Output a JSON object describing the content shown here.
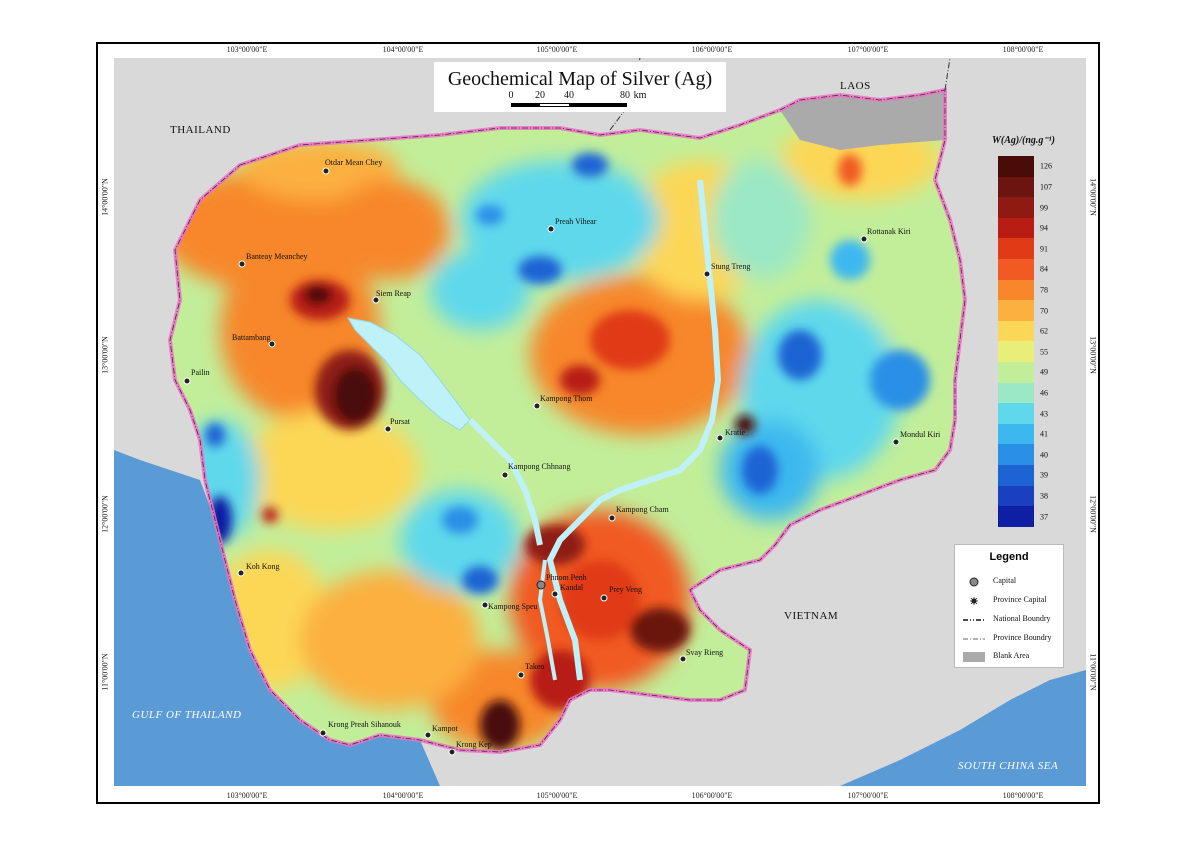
{
  "title": "Geochemical Map of  Silver (Ag)",
  "scale_bar": {
    "labels": [
      "0",
      "20",
      "40",
      "80"
    ],
    "unit": "km"
  },
  "axes": {
    "longitude_labels": [
      "103°00'00\"E",
      "104°00'00\"E",
      "105°00'00\"E",
      "106°00'00\"E",
      "107°00'00\"E",
      "108°00'00\"E"
    ],
    "latitude_labels": [
      "14°00'00\"N",
      "13°00'00\"N",
      "12°00'00\"N",
      "11°00'00\"N"
    ]
  },
  "countries": [
    "THAILAND",
    "LAOS",
    "VIETNAM"
  ],
  "seas": [
    "GULF OF THAILAND",
    "SOUTH CHINA SEA"
  ],
  "places": [
    {
      "name": "Otdar Mean Chey",
      "type": "province"
    },
    {
      "name": "Preah Vihear",
      "type": "province"
    },
    {
      "name": "Rottanak Kiri",
      "type": "province"
    },
    {
      "name": "Banteay Meanchey",
      "type": "province"
    },
    {
      "name": "Stung Treng",
      "type": "province"
    },
    {
      "name": "Siem Reap",
      "type": "province"
    },
    {
      "name": "Battambang",
      "type": "province"
    },
    {
      "name": "Pailin",
      "type": "province"
    },
    {
      "name": "Kampong Thom",
      "type": "province"
    },
    {
      "name": "Pursat",
      "type": "province"
    },
    {
      "name": "Kratie",
      "type": "province"
    },
    {
      "name": "Mondul Kiri",
      "type": "province"
    },
    {
      "name": "Kampong Chhnang",
      "type": "province"
    },
    {
      "name": "Kampong Cham",
      "type": "province"
    },
    {
      "name": "Koh Kong",
      "type": "province"
    },
    {
      "name": "Phnom Penh",
      "type": "capital"
    },
    {
      "name": "Kandal",
      "type": "province"
    },
    {
      "name": "Prey Veng",
      "type": "province"
    },
    {
      "name": "Kampong Speu",
      "type": "province"
    },
    {
      "name": "Svay Rieng",
      "type": "province"
    },
    {
      "name": "Takeo",
      "type": "province"
    },
    {
      "name": "Krong Preah Sihanouk",
      "type": "province"
    },
    {
      "name": "Kampot",
      "type": "province"
    },
    {
      "name": "Krong Kep",
      "type": "province"
    }
  ],
  "colorbar": {
    "title": "W(Ag)/(ng.g⁻¹)",
    "levels": [
      {
        "label": "126",
        "color": "#4a0c08"
      },
      {
        "label": "107",
        "color": "#6b1410"
      },
      {
        "label": "99",
        "color": "#8f1a12"
      },
      {
        "label": "94",
        "color": "#b81d14"
      },
      {
        "label": "91",
        "color": "#e03a17"
      },
      {
        "label": "84",
        "color": "#f15a22"
      },
      {
        "label": "78",
        "color": "#f7872a"
      },
      {
        "label": "70",
        "color": "#fbb040"
      },
      {
        "label": "62",
        "color": "#fcd757"
      },
      {
        "label": "55",
        "color": "#e9ee7a"
      },
      {
        "label": "49",
        "color": "#c2ee9a"
      },
      {
        "label": "46",
        "color": "#9be8c4"
      },
      {
        "label": "43",
        "color": "#5fd8ec"
      },
      {
        "label": "41",
        "color": "#3cb8ef"
      },
      {
        "label": "40",
        "color": "#2a8fe6"
      },
      {
        "label": "39",
        "color": "#1e63d4"
      },
      {
        "label": "38",
        "color": "#1a3fc0"
      },
      {
        "label": "37",
        "color": "#0f1fa3"
      }
    ]
  },
  "legend": {
    "title": "Legend",
    "items": [
      {
        "label": "Capital",
        "symbol": "circle"
      },
      {
        "label": "Province Capital",
        "symbol": "star-dot"
      },
      {
        "label": "National Boundry",
        "symbol": "dash-dot-dot"
      },
      {
        "label": "Province Boundry",
        "symbol": "dash-dot"
      },
      {
        "label": "Blank  Area",
        "symbol": "gray-box"
      }
    ]
  },
  "colors": {
    "sea": "#5b9bd5",
    "land_outside": "#d9d9d9",
    "border": "#f06ec8",
    "lake": "#bff2f8"
  }
}
